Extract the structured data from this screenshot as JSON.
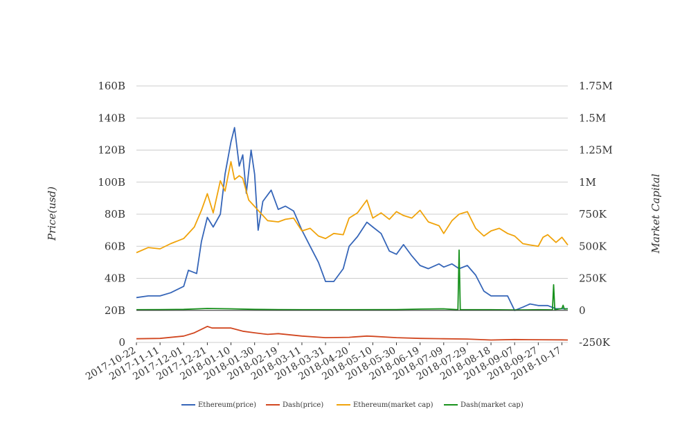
{
  "chart_data": {
    "type": "line",
    "left_axis": {
      "title": "Price(usd)",
      "min": 0,
      "max": 160000000000,
      "ticks": [
        0,
        20000000000,
        40000000000,
        60000000000,
        80000000000,
        100000000000,
        120000000000,
        140000000000,
        160000000000
      ],
      "tick_labels": [
        "0",
        "20B",
        "40B",
        "60B",
        "80B",
        "100B",
        "120B",
        "140B",
        "160B"
      ]
    },
    "right_axis": {
      "title": "Market Capital",
      "min": -250000,
      "max": 1750000,
      "ticks": [
        -250000,
        0,
        250000,
        500000,
        750000,
        1000000,
        1250000,
        1500000,
        1750000
      ],
      "tick_labels": [
        "-250K",
        "0",
        "250K",
        "500K",
        "750K",
        "1M",
        "1.25M",
        "1.5M",
        "1.75M"
      ]
    },
    "x_axis": {
      "start": "2017-10-22",
      "end": "2018-10-22",
      "tick_labels": [
        "2017-10-22",
        "2017-11-11",
        "2017-12-01",
        "2017-12-21",
        "2018-01-10",
        "2018-01-30",
        "2018-02-19",
        "2018-03-11",
        "2018-03-31",
        "2018-04-20",
        "2018-05-10",
        "2018-05-30",
        "2018-06-19",
        "2018-07-09",
        "2018-07-29",
        "2018-08-18",
        "2018-09-07",
        "2018-09-27",
        "2018-10-17"
      ]
    },
    "grid": "horizontal",
    "legend_position": "bottom",
    "series": [
      {
        "name": "Ethereum(price)",
        "axis": "left",
        "color": "#3565b8",
        "points": [
          [
            "2017-10-22",
            28
          ],
          [
            "2017-11-01",
            29
          ],
          [
            "2017-11-11",
            29
          ],
          [
            "2017-11-20",
            31
          ],
          [
            "2017-12-01",
            35
          ],
          [
            "2017-12-05",
            45
          ],
          [
            "2017-12-12",
            43
          ],
          [
            "2017-12-16",
            63
          ],
          [
            "2017-12-21",
            78
          ],
          [
            "2017-12-26",
            72
          ],
          [
            "2018-01-01",
            80
          ],
          [
            "2018-01-05",
            105
          ],
          [
            "2018-01-10",
            125
          ],
          [
            "2018-01-13",
            134
          ],
          [
            "2018-01-17",
            110
          ],
          [
            "2018-01-20",
            117
          ],
          [
            "2018-01-23",
            93
          ],
          [
            "2018-01-27",
            120
          ],
          [
            "2018-01-30",
            105
          ],
          [
            "2018-02-02",
            70
          ],
          [
            "2018-02-06",
            88
          ],
          [
            "2018-02-13",
            95
          ],
          [
            "2018-02-19",
            83
          ],
          [
            "2018-02-25",
            85
          ],
          [
            "2018-03-04",
            82
          ],
          [
            "2018-03-11",
            70
          ],
          [
            "2018-03-18",
            60
          ],
          [
            "2018-03-25",
            50
          ],
          [
            "2018-03-31",
            38
          ],
          [
            "2018-04-07",
            38
          ],
          [
            "2018-04-15",
            46
          ],
          [
            "2018-04-20",
            60
          ],
          [
            "2018-04-27",
            66
          ],
          [
            "2018-05-05",
            75
          ],
          [
            "2018-05-10",
            72
          ],
          [
            "2018-05-17",
            68
          ],
          [
            "2018-05-24",
            57
          ],
          [
            "2018-05-30",
            55
          ],
          [
            "2018-06-05",
            61
          ],
          [
            "2018-06-12",
            54
          ],
          [
            "2018-06-19",
            48
          ],
          [
            "2018-06-26",
            46
          ],
          [
            "2018-07-05",
            49
          ],
          [
            "2018-07-09",
            47
          ],
          [
            "2018-07-16",
            49
          ],
          [
            "2018-07-22",
            46
          ],
          [
            "2018-07-29",
            48
          ],
          [
            "2018-08-05",
            42
          ],
          [
            "2018-08-12",
            32
          ],
          [
            "2018-08-18",
            29
          ],
          [
            "2018-08-25",
            29
          ],
          [
            "2018-09-01",
            29
          ],
          [
            "2018-09-07",
            20
          ],
          [
            "2018-09-14",
            22
          ],
          [
            "2018-09-20",
            24
          ],
          [
            "2018-09-27",
            23
          ],
          [
            "2018-10-05",
            23
          ],
          [
            "2018-10-12",
            21
          ],
          [
            "2018-10-17",
            21
          ],
          [
            "2018-10-22",
            21
          ]
        ]
      },
      {
        "name": "Dash(price)",
        "axis": "left",
        "color": "#d1461f",
        "points": [
          [
            "2017-10-22",
            2.3
          ],
          [
            "2017-11-11",
            2.5
          ],
          [
            "2017-12-01",
            4
          ],
          [
            "2017-12-10",
            6
          ],
          [
            "2017-12-21",
            10
          ],
          [
            "2017-12-25",
            9
          ],
          [
            "2018-01-05",
            9
          ],
          [
            "2018-01-10",
            9
          ],
          [
            "2018-01-20",
            7
          ],
          [
            "2018-01-30",
            6
          ],
          [
            "2018-02-10",
            5
          ],
          [
            "2018-02-19",
            5.5
          ],
          [
            "2018-03-11",
            4
          ],
          [
            "2018-03-31",
            3
          ],
          [
            "2018-04-20",
            3.2
          ],
          [
            "2018-05-05",
            4
          ],
          [
            "2018-05-10",
            3.8
          ],
          [
            "2018-05-30",
            3
          ],
          [
            "2018-06-19",
            2.5
          ],
          [
            "2018-07-09",
            2.3
          ],
          [
            "2018-07-29",
            2.1
          ],
          [
            "2018-08-18",
            1.5
          ],
          [
            "2018-09-07",
            1.8
          ],
          [
            "2018-09-27",
            1.7
          ],
          [
            "2018-10-17",
            1.6
          ],
          [
            "2018-10-22",
            1.5
          ]
        ]
      },
      {
        "name": "Ethereum(market cap)",
        "axis": "right",
        "color": "#f0a30a",
        "points": [
          [
            "2017-10-22",
            450000
          ],
          [
            "2017-11-01",
            490000
          ],
          [
            "2017-11-11",
            480000
          ],
          [
            "2017-11-20",
            520000
          ],
          [
            "2017-12-01",
            560000
          ],
          [
            "2017-12-10",
            650000
          ],
          [
            "2017-12-16",
            780000
          ],
          [
            "2017-12-21",
            910000
          ],
          [
            "2017-12-26",
            760000
          ],
          [
            "2018-01-01",
            1010000
          ],
          [
            "2018-01-05",
            930000
          ],
          [
            "2018-01-08",
            1070000
          ],
          [
            "2018-01-10",
            1160000
          ],
          [
            "2018-01-13",
            1020000
          ],
          [
            "2018-01-17",
            1050000
          ],
          [
            "2018-01-20",
            1030000
          ],
          [
            "2018-01-25",
            860000
          ],
          [
            "2018-01-30",
            810000
          ],
          [
            "2018-02-03",
            770000
          ],
          [
            "2018-02-10",
            700000
          ],
          [
            "2018-02-19",
            690000
          ],
          [
            "2018-02-25",
            710000
          ],
          [
            "2018-03-04",
            720000
          ],
          [
            "2018-03-11",
            620000
          ],
          [
            "2018-03-18",
            640000
          ],
          [
            "2018-03-25",
            580000
          ],
          [
            "2018-03-31",
            560000
          ],
          [
            "2018-04-07",
            600000
          ],
          [
            "2018-04-15",
            590000
          ],
          [
            "2018-04-20",
            720000
          ],
          [
            "2018-04-27",
            760000
          ],
          [
            "2018-05-05",
            860000
          ],
          [
            "2018-05-10",
            720000
          ],
          [
            "2018-05-17",
            760000
          ],
          [
            "2018-05-24",
            710000
          ],
          [
            "2018-05-30",
            770000
          ],
          [
            "2018-06-05",
            740000
          ],
          [
            "2018-06-12",
            720000
          ],
          [
            "2018-06-19",
            780000
          ],
          [
            "2018-06-26",
            690000
          ],
          [
            "2018-07-05",
            660000
          ],
          [
            "2018-07-09",
            600000
          ],
          [
            "2018-07-16",
            700000
          ],
          [
            "2018-07-22",
            750000
          ],
          [
            "2018-07-29",
            770000
          ],
          [
            "2018-08-05",
            640000
          ],
          [
            "2018-08-12",
            580000
          ],
          [
            "2018-08-18",
            620000
          ],
          [
            "2018-08-25",
            640000
          ],
          [
            "2018-09-01",
            600000
          ],
          [
            "2018-09-07",
            580000
          ],
          [
            "2018-09-14",
            520000
          ],
          [
            "2018-09-20",
            510000
          ],
          [
            "2018-09-27",
            500000
          ],
          [
            "2018-10-01",
            570000
          ],
          [
            "2018-10-05",
            590000
          ],
          [
            "2018-10-12",
            530000
          ],
          [
            "2018-10-17",
            570000
          ],
          [
            "2018-10-22",
            510000
          ]
        ]
      },
      {
        "name": "Dash(market cap)",
        "axis": "right",
        "color": "#17911c",
        "points": [
          [
            "2017-10-22",
            5000
          ],
          [
            "2017-11-11",
            6000
          ],
          [
            "2017-12-01",
            8000
          ],
          [
            "2017-12-21",
            15000
          ],
          [
            "2018-01-10",
            12000
          ],
          [
            "2018-01-30",
            8000
          ],
          [
            "2018-02-19",
            6000
          ],
          [
            "2018-03-11",
            5000
          ],
          [
            "2018-04-20",
            5000
          ],
          [
            "2018-05-30",
            6000
          ],
          [
            "2018-06-19",
            10000
          ],
          [
            "2018-07-09",
            12000
          ],
          [
            "2018-07-21",
            5000
          ],
          [
            "2018-07-22",
            470000
          ],
          [
            "2018-07-23",
            5000
          ],
          [
            "2018-08-18",
            5000
          ],
          [
            "2018-09-07",
            3000
          ],
          [
            "2018-09-27",
            5000
          ],
          [
            "2018-10-09",
            4000
          ],
          [
            "2018-10-10",
            200000
          ],
          [
            "2018-10-11",
            5000
          ],
          [
            "2018-10-17",
            15000
          ],
          [
            "2018-10-18",
            40000
          ],
          [
            "2018-10-19",
            10000
          ],
          [
            "2018-10-22",
            12000
          ]
        ]
      }
    ]
  }
}
